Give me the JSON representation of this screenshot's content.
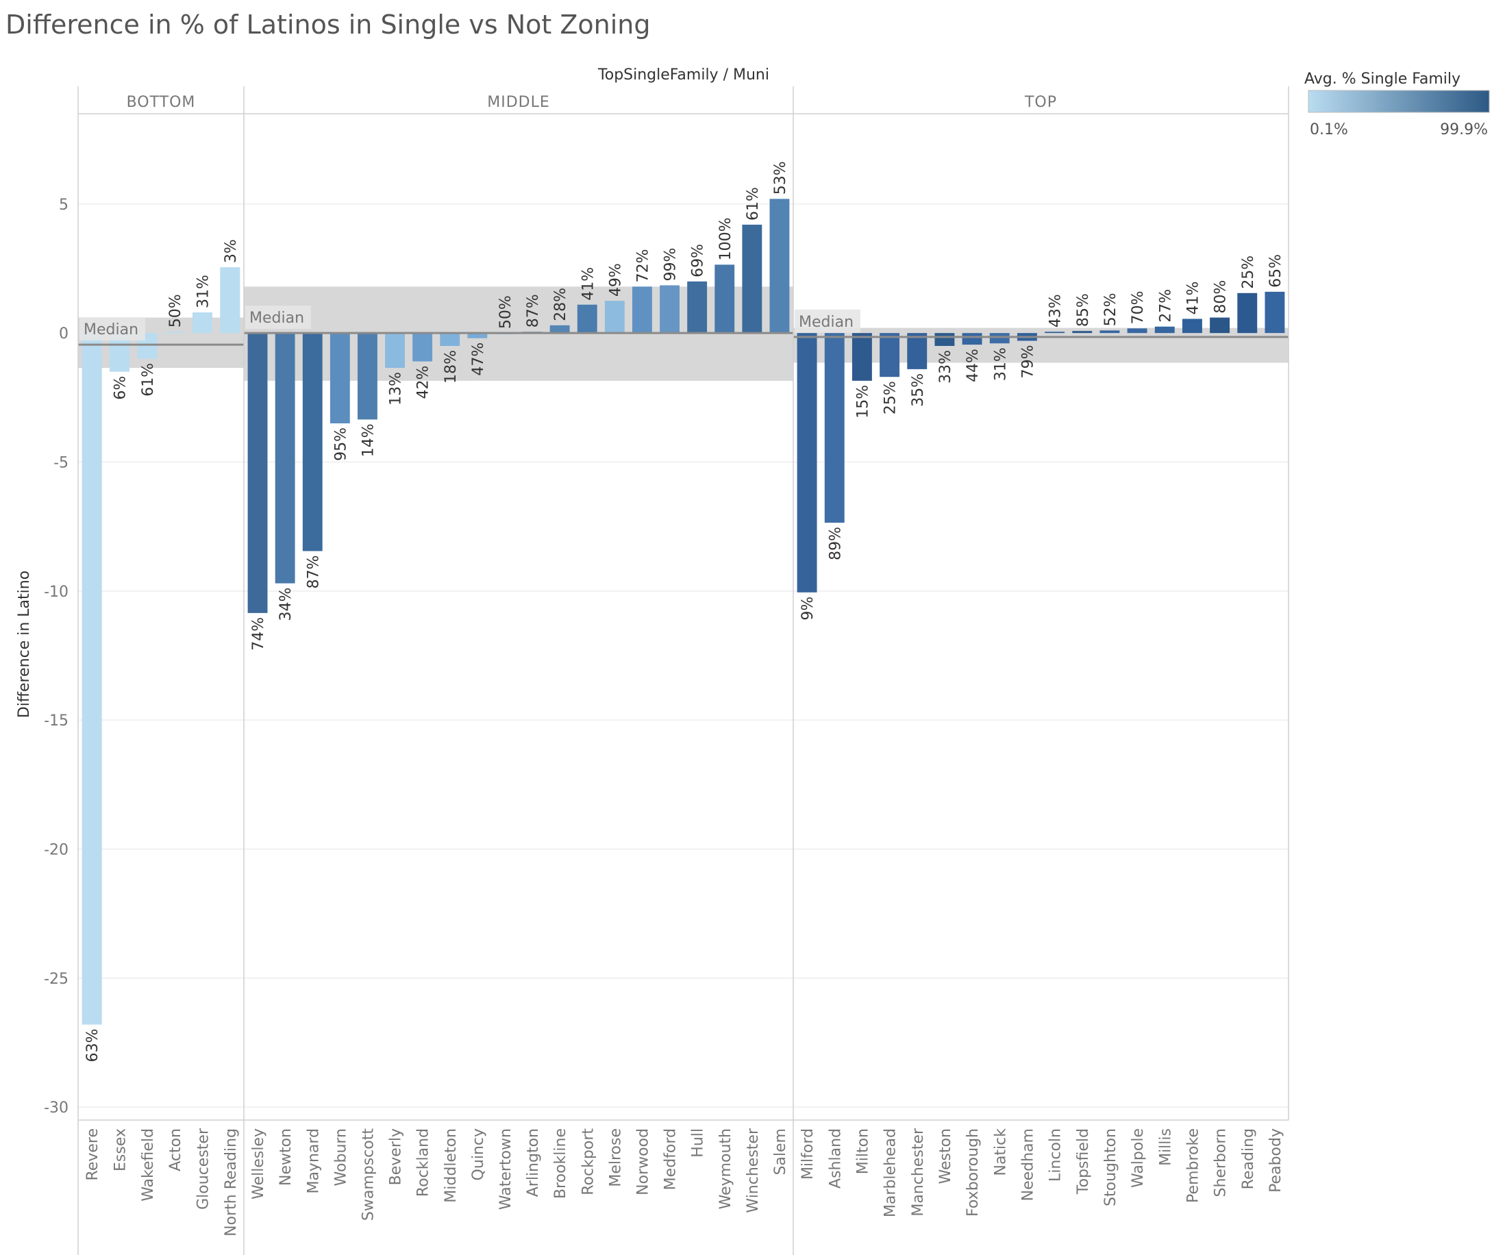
{
  "title": "Difference in % of Latinos in Single  vs Not Zoning",
  "chart_data": {
    "type": "bar",
    "column_header": "TopSingleFamily  /  Muni",
    "ylabel": "Difference in Latino",
    "ylim": [
      -30.5,
      8.5
    ],
    "yticks": [
      5,
      0,
      -5,
      -10,
      -15,
      -20,
      -25,
      -30
    ],
    "grid": true,
    "reference_band": "median",
    "median_label": "Median",
    "legend": {
      "title": "Avg. % Single Family",
      "min_label": "0.1%",
      "max_label": "99.9%",
      "min_color": "#b9dcf0",
      "max_color": "#2c5985",
      "position": "top-right"
    },
    "panels": [
      {
        "name": "BOTTOM",
        "median": -0.45,
        "band": [
          -1.35,
          0.6
        ],
        "bars": [
          {
            "muni": "Revere",
            "value": -26.8,
            "label": "63%",
            "color": "#b9dcf0"
          },
          {
            "muni": "Essex",
            "value": -1.5,
            "label": "6%",
            "color": "#b9dcf0"
          },
          {
            "muni": "Wakefield",
            "value": -1.0,
            "label": "61%",
            "color": "#b9dcf0"
          },
          {
            "muni": "Acton",
            "value": 0.05,
            "label": "50%",
            "color": "#b9dcf0"
          },
          {
            "muni": "Gloucester",
            "value": 0.8,
            "label": "31%",
            "color": "#b9dcf0"
          },
          {
            "muni": "North Reading",
            "value": 2.55,
            "label": "3%",
            "color": "#b9dcf0"
          }
        ]
      },
      {
        "name": "MIDDLE",
        "median": 0.0,
        "band": [
          -1.85,
          1.8
        ],
        "bars": [
          {
            "muni": "Wellesley",
            "value": -10.85,
            "label": "74%",
            "color": "#3e6a9a"
          },
          {
            "muni": "Newton",
            "value": -9.7,
            "label": "34%",
            "color": "#4a79aa"
          },
          {
            "muni": "Maynard",
            "value": -8.45,
            "label": "87%",
            "color": "#3c6b9d"
          },
          {
            "muni": "Woburn",
            "value": -3.5,
            "label": "95%",
            "color": "#5b8ebf"
          },
          {
            "muni": "Swampscott",
            "value": -3.35,
            "label": "14%",
            "color": "#4f7fae"
          },
          {
            "muni": "Beverly",
            "value": -1.35,
            "label": "13%",
            "color": "#8bbadf"
          },
          {
            "muni": "Rockland",
            "value": -1.1,
            "label": "42%",
            "color": "#6a9ccb"
          },
          {
            "muni": "Middleton",
            "value": -0.5,
            "label": "18%",
            "color": "#80b1da"
          },
          {
            "muni": "Quincy",
            "value": -0.2,
            "label": "47%",
            "color": "#78aad6"
          },
          {
            "muni": "Watertown",
            "value": 0.0,
            "label": "50%",
            "color": "#6a9ccb"
          },
          {
            "muni": "Arlington",
            "value": 0.05,
            "label": "87%",
            "color": "#4d7eae"
          },
          {
            "muni": "Brookline",
            "value": 0.3,
            "label": "28%",
            "color": "#5585b4"
          },
          {
            "muni": "Rockport",
            "value": 1.1,
            "label": "41%",
            "color": "#4a7cad"
          },
          {
            "muni": "Melrose",
            "value": 1.25,
            "label": "49%",
            "color": "#8dbbde"
          },
          {
            "muni": "Norwood",
            "value": 1.8,
            "label": "72%",
            "color": "#5f92c2"
          },
          {
            "muni": "Medford",
            "value": 1.85,
            "label": "99%",
            "color": "#6796c5"
          },
          {
            "muni": "Hull",
            "value": 2.0,
            "label": "69%",
            "color": "#3f6e9f"
          },
          {
            "muni": "Weymouth",
            "value": 2.65,
            "label": "100%",
            "color": "#4878a9"
          },
          {
            "muni": "Winchester",
            "value": 4.2,
            "label": "61%",
            "color": "#3b6a9b"
          },
          {
            "muni": "Salem",
            "value": 5.2,
            "label": "53%",
            "color": "#5383b3"
          }
        ]
      },
      {
        "name": "TOP",
        "median": -0.15,
        "band": [
          -1.15,
          0.2
        ],
        "bars": [
          {
            "muni": "Milford",
            "value": -10.05,
            "label": "9%",
            "color": "#36639a"
          },
          {
            "muni": "Ashland",
            "value": -7.35,
            "label": "89%",
            "color": "#3e6ea5"
          },
          {
            "muni": "Milton",
            "value": -1.85,
            "label": "15%",
            "color": "#2f5a8e"
          },
          {
            "muni": "Marblehead",
            "value": -1.7,
            "label": "25%",
            "color": "#3a67a0"
          },
          {
            "muni": "Manchester",
            "value": -1.4,
            "label": "35%",
            "color": "#34619a"
          },
          {
            "muni": "Weston",
            "value": -0.5,
            "label": "33%",
            "color": "#2d5a8c"
          },
          {
            "muni": "Foxborough",
            "value": -0.45,
            "label": "44%",
            "color": "#3566a0"
          },
          {
            "muni": "Natick",
            "value": -0.4,
            "label": "31%",
            "color": "#3d6da6"
          },
          {
            "muni": "Needham",
            "value": -0.3,
            "label": "79%",
            "color": "#30609a"
          },
          {
            "muni": "Lincoln",
            "value": 0.05,
            "label": "43%",
            "color": "#36639a"
          },
          {
            "muni": "Topsfield",
            "value": 0.08,
            "label": "85%",
            "color": "#2f5a8e"
          },
          {
            "muni": "Stoughton",
            "value": 0.1,
            "label": "52%",
            "color": "#3566a0"
          },
          {
            "muni": "Walpole",
            "value": 0.18,
            "label": "70%",
            "color": "#3968a3"
          },
          {
            "muni": "Millis",
            "value": 0.25,
            "label": "27%",
            "color": "#3566a0"
          },
          {
            "muni": "Pembroke",
            "value": 0.55,
            "label": "41%",
            "color": "#30609a"
          },
          {
            "muni": "Sherborn",
            "value": 0.6,
            "label": "80%",
            "color": "#2b5688"
          },
          {
            "muni": "Reading",
            "value": 1.55,
            "label": "25%",
            "color": "#2c5a90"
          },
          {
            "muni": "Peabody",
            "value": 1.6,
            "label": "65%",
            "color": "#3666a0"
          }
        ]
      }
    ]
  }
}
